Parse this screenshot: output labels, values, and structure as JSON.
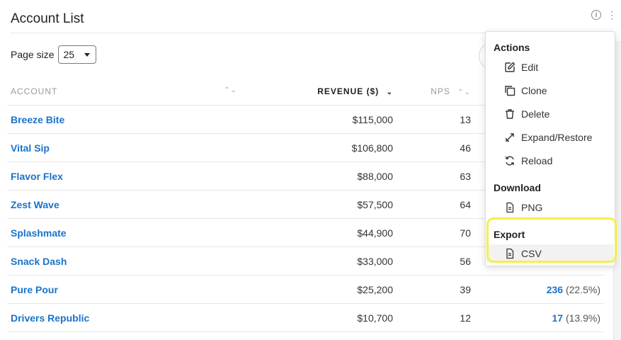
{
  "header": {
    "title": "Account List"
  },
  "controls": {
    "page_size_label": "Page size",
    "page_size_value": "25"
  },
  "table": {
    "columns": [
      "ACCOUNT",
      "REVENUE ($)",
      "NPS"
    ],
    "rows": [
      {
        "account": "Breeze Bite",
        "revenue": "$115,000",
        "nps": "13",
        "count": "",
        "pct": ""
      },
      {
        "account": "Vital Sip",
        "revenue": "$106,800",
        "nps": "46",
        "count": "",
        "pct": ""
      },
      {
        "account": "Flavor Flex",
        "revenue": "$88,000",
        "nps": "63",
        "count": "",
        "pct": ""
      },
      {
        "account": "Zest Wave",
        "revenue": "$57,500",
        "nps": "64",
        "count": "",
        "pct": ""
      },
      {
        "account": "Splashmate",
        "revenue": "$44,900",
        "nps": "70",
        "count": "",
        "pct": ""
      },
      {
        "account": "Snack Dash",
        "revenue": "$33,000",
        "nps": "56",
        "count": "",
        "pct": ""
      },
      {
        "account": "Pure Pour",
        "revenue": "$25,200",
        "nps": "39",
        "count": "236",
        "pct": "(22.5%)"
      },
      {
        "account": "Drivers Republic",
        "revenue": "$10,700",
        "nps": "12",
        "count": "17",
        "pct": "(13.9%)"
      }
    ]
  },
  "menu": {
    "actions_header": "Actions",
    "actions": [
      "Edit",
      "Clone",
      "Delete",
      "Expand/Restore",
      "Reload"
    ],
    "download_header": "Download",
    "download_items": [
      "PNG"
    ],
    "export_header": "Export",
    "export_items": [
      "CSV"
    ]
  },
  "colors": {
    "accent": "#1a73c9",
    "highlight": "#f4f04a"
  }
}
